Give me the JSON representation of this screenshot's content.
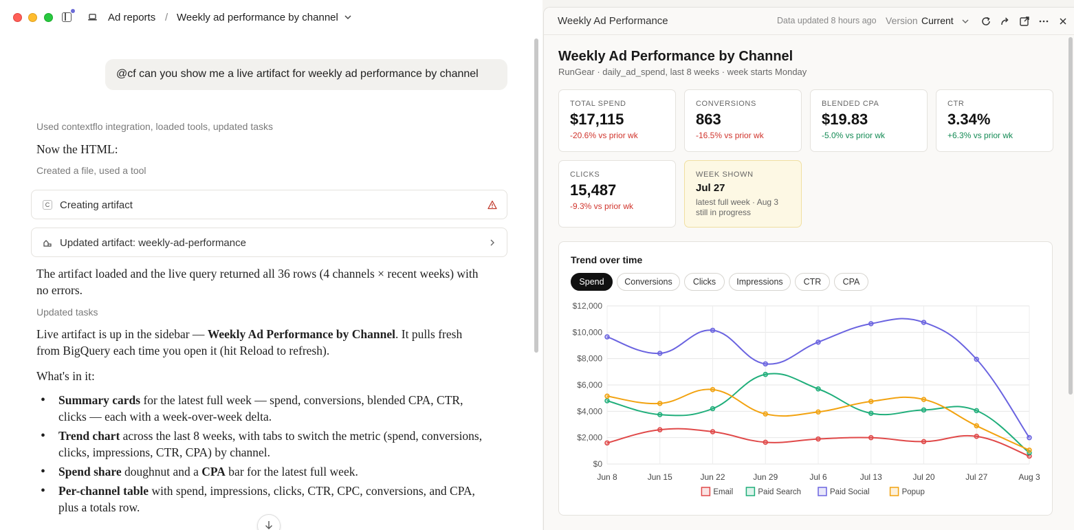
{
  "window": {
    "breadcrumb_root": "Ad reports",
    "breadcrumb_sep": "/",
    "breadcrumb_current": "Weekly ad performance by channel"
  },
  "chat": {
    "user_message": "@cf can you show me a live artifact for weekly ad performance by channel",
    "meta1": "Used contextflo integration, loaded tools, updated tasks",
    "line1": "Now the HTML:",
    "meta2": "Created a file, used a tool",
    "tool1_badge": "C",
    "tool1_label": "Creating artifact",
    "tool2_label": "Updated artifact: weekly-ad-performance",
    "para1": "The artifact loaded and the live query returned all 36 rows (4 channels × recent weeks) with no errors.",
    "meta3": "Updated tasks",
    "para2_a": "Live artifact is up in the sidebar — ",
    "para2_b": "Weekly Ad Performance by Channel",
    "para2_c": ". It pulls fresh from BigQuery each time you open it (hit Reload to refresh).",
    "para3": "What's in it:",
    "bullets": [
      {
        "bold": "Summary cards",
        "rest": " for the latest full week — spend, conversions, blended CPA, CTR, clicks — each with a week-over-week delta."
      },
      {
        "bold": "Trend chart",
        "rest": " across the last 8 weeks, with tabs to switch the metric (spend, conversions, clicks, impressions, CTR, CPA) by channel."
      },
      {
        "bold": "Spend share",
        "rest": " doughnut and a "
      },
      {
        "bold": "Per-channel table",
        "rest": " with spend, impressions, clicks, CTR, CPC, conversions, and CPA, plus a totals row."
      }
    ],
    "bullet3_bold2": "CPA",
    "bullet3_tail": " bar for the latest full week."
  },
  "artifact": {
    "header_title": "Weekly Ad Performance",
    "updated": "Data updated 8 hours ago",
    "version_label": "Version",
    "version_value": "Current",
    "title": "Weekly Ad Performance by Channel",
    "subtitle": "RunGear · daily_ad_spend, last 8 weeks · week starts Monday",
    "cards": [
      {
        "key": "TOTAL SPEND",
        "value": "$17,115",
        "delta": "-20.6% vs prior wk",
        "dir": "neg"
      },
      {
        "key": "CONVERSIONS",
        "value": "863",
        "delta": "-16.5% vs prior wk",
        "dir": "neg"
      },
      {
        "key": "BLENDED CPA",
        "value": "$19.83",
        "delta": "-5.0% vs prior wk",
        "dir": "pos"
      },
      {
        "key": "CTR",
        "value": "3.34%",
        "delta": "+6.3% vs prior wk",
        "dir": "pos"
      },
      {
        "key": "CLICKS",
        "value": "15,487",
        "delta": "-9.3% vs prior wk",
        "dir": "neg"
      }
    ],
    "week_card": {
      "key": "WEEK SHOWN",
      "value": "Jul 27",
      "note": "latest full week · Aug 3 still in progress"
    },
    "chart_title": "Trend over time",
    "tabs": [
      "Spend",
      "Conversions",
      "Clicks",
      "Impressions",
      "CTR",
      "CPA"
    ],
    "active_tab": "Spend",
    "colors": {
      "Email": "#e04848",
      "Paid Search": "#1fae7a",
      "Paid Social": "#6a63e0",
      "Popup": "#f2a20f"
    }
  },
  "chart_data": {
    "type": "line",
    "categories": [
      "Jun 8",
      "Jun 15",
      "Jun 22",
      "Jun 29",
      "Jul 6",
      "Jul 13",
      "Jul 20",
      "Jul 27",
      "Aug 3"
    ],
    "ylim": [
      0,
      12000
    ],
    "yticks": [
      "$0",
      "$2,000",
      "$4,000",
      "$6,000",
      "$8,000",
      "$10,000",
      "$12,000"
    ],
    "grid": true,
    "legend": "bottom",
    "series": [
      {
        "name": "Email",
        "values": [
          1600,
          2600,
          2450,
          1650,
          1900,
          2000,
          1700,
          2100,
          600
        ]
      },
      {
        "name": "Paid Search",
        "values": [
          4800,
          3750,
          4200,
          6800,
          5700,
          3850,
          4100,
          4050,
          850
        ]
      },
      {
        "name": "Paid Social",
        "values": [
          9650,
          8400,
          10150,
          7600,
          9250,
          10650,
          10750,
          7950,
          2000
        ]
      },
      {
        "name": "Popup",
        "values": [
          5150,
          4600,
          5650,
          3800,
          3950,
          4750,
          4900,
          2900,
          1050
        ]
      }
    ]
  }
}
